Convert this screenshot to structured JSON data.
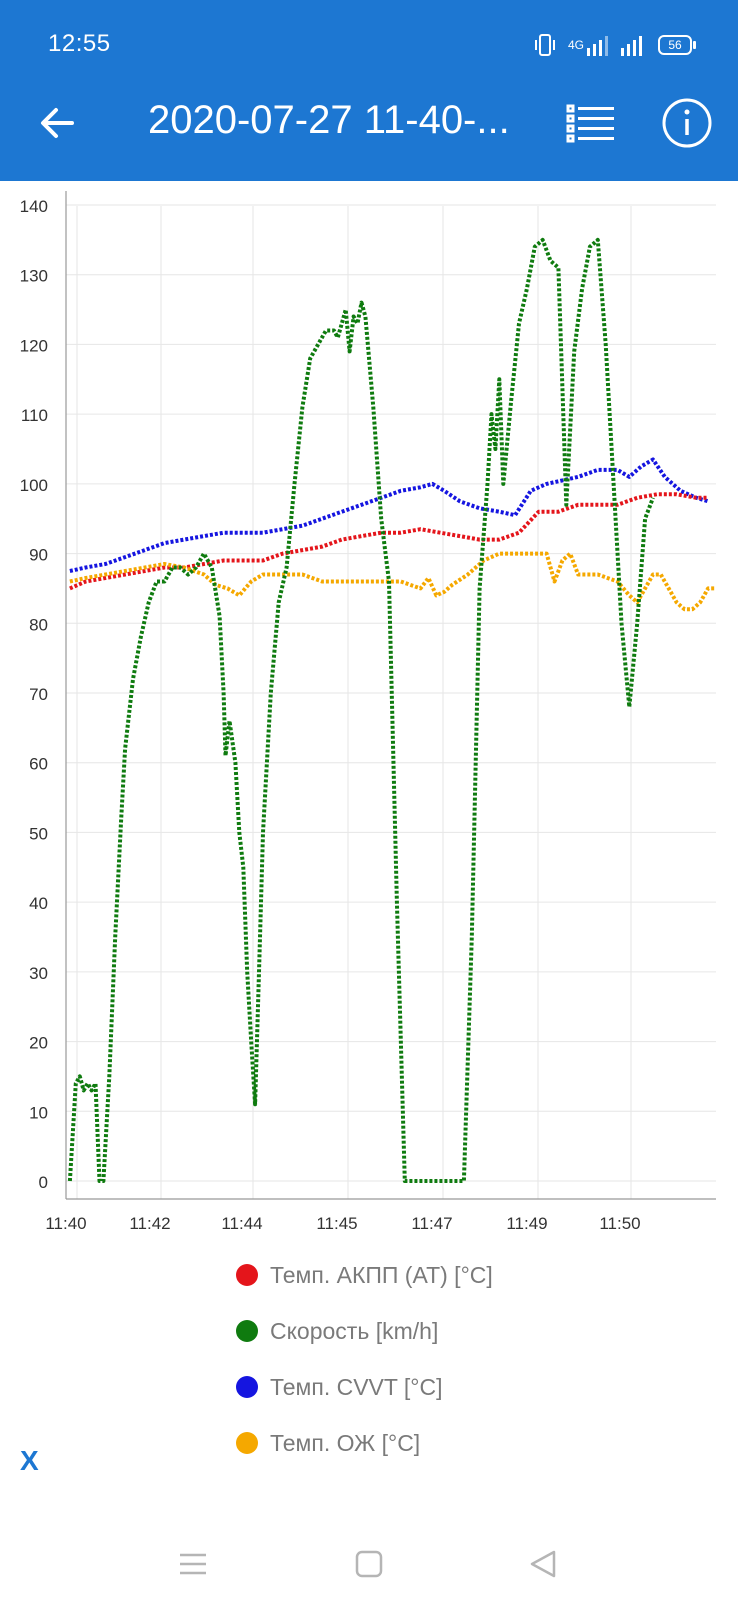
{
  "status_bar": {
    "time": "12:55",
    "network": "4G",
    "battery": "56"
  },
  "app_bar": {
    "title": "2020-07-27 11-40-...",
    "back_icon": "arrow-left-icon",
    "list_icon": "list-icon",
    "info_icon": "info-icon"
  },
  "colors": {
    "app_bar": "#1d77d2",
    "speed": "#0f7b0f",
    "at_temp": "#e4151b",
    "cvvt_temp": "#1515e0",
    "coolant_temp": "#f5a800"
  },
  "chart_data": {
    "type": "line",
    "ylim": [
      0,
      140
    ],
    "y_ticks": [
      0,
      10,
      20,
      30,
      40,
      50,
      60,
      70,
      80,
      90,
      100,
      110,
      120,
      130,
      140
    ],
    "x_ticks": [
      "11:40",
      "11:42",
      "11:44",
      "11:45",
      "11:47",
      "11:49",
      "11:50"
    ],
    "grid": true,
    "legend": "bottom",
    "series": [
      {
        "name": "Темп. АКПП (AT) [°C]",
        "color": "#e4151b",
        "points": [
          [
            0.1,
            85
          ],
          [
            0.5,
            86
          ],
          [
            1.0,
            86.5
          ],
          [
            1.5,
            87
          ],
          [
            2.0,
            87.5
          ],
          [
            2.5,
            88
          ],
          [
            3.0,
            88
          ],
          [
            3.5,
            88.5
          ],
          [
            4.0,
            89
          ],
          [
            4.5,
            89
          ],
          [
            5.0,
            89
          ],
          [
            5.5,
            90
          ],
          [
            6.0,
            90.5
          ],
          [
            6.5,
            91
          ],
          [
            7.0,
            92
          ],
          [
            7.5,
            92.5
          ],
          [
            8.0,
            93
          ],
          [
            8.5,
            93
          ],
          [
            9.0,
            93.5
          ],
          [
            9.5,
            93
          ],
          [
            10.0,
            92.5
          ],
          [
            10.5,
            92
          ],
          [
            11.0,
            92
          ],
          [
            11.5,
            93
          ],
          [
            12.0,
            96
          ],
          [
            12.5,
            96
          ],
          [
            13.0,
            97
          ],
          [
            13.5,
            97
          ],
          [
            14.0,
            97
          ],
          [
            14.5,
            98
          ],
          [
            15.0,
            98.5
          ],
          [
            15.5,
            98.5
          ],
          [
            16.0,
            98
          ],
          [
            16.3,
            98
          ]
        ]
      },
      {
        "name": "Скорость [km/h]",
        "color": "#0f7b0f",
        "points": [
          [
            0.1,
            0
          ],
          [
            0.25,
            14
          ],
          [
            0.35,
            15
          ],
          [
            0.45,
            13
          ],
          [
            0.55,
            14
          ],
          [
            0.65,
            13
          ],
          [
            0.75,
            14
          ],
          [
            0.85,
            0
          ],
          [
            0.95,
            0
          ],
          [
            1.1,
            15
          ],
          [
            1.25,
            35
          ],
          [
            1.4,
            52
          ],
          [
            1.5,
            62
          ],
          [
            1.7,
            72
          ],
          [
            1.9,
            78
          ],
          [
            2.1,
            83
          ],
          [
            2.3,
            86
          ],
          [
            2.5,
            86
          ],
          [
            2.7,
            88
          ],
          [
            2.9,
            88
          ],
          [
            3.1,
            87
          ],
          [
            3.3,
            88
          ],
          [
            3.5,
            90
          ],
          [
            3.7,
            88
          ],
          [
            3.9,
            81
          ],
          [
            4.0,
            70
          ],
          [
            4.05,
            61
          ],
          [
            4.15,
            66
          ],
          [
            4.3,
            60
          ],
          [
            4.4,
            50
          ],
          [
            4.5,
            45
          ],
          [
            4.6,
            30
          ],
          [
            4.7,
            20
          ],
          [
            4.8,
            11
          ],
          [
            4.9,
            30
          ],
          [
            5.0,
            50
          ],
          [
            5.2,
            70
          ],
          [
            5.4,
            83
          ],
          [
            5.6,
            88
          ],
          [
            5.8,
            100
          ],
          [
            6.0,
            111
          ],
          [
            6.2,
            118
          ],
          [
            6.4,
            120
          ],
          [
            6.6,
            122
          ],
          [
            6.8,
            122
          ],
          [
            6.9,
            121
          ],
          [
            7.0,
            123
          ],
          [
            7.1,
            125
          ],
          [
            7.2,
            119
          ],
          [
            7.3,
            124
          ],
          [
            7.4,
            123
          ],
          [
            7.5,
            126
          ],
          [
            7.6,
            124
          ],
          [
            7.8,
            111
          ],
          [
            8.0,
            95
          ],
          [
            8.2,
            86
          ],
          [
            8.4,
            40
          ],
          [
            8.6,
            0
          ],
          [
            9.0,
            0
          ],
          [
            9.4,
            0
          ],
          [
            9.8,
            0
          ],
          [
            10.1,
            0
          ],
          [
            10.3,
            35
          ],
          [
            10.5,
            85
          ],
          [
            10.7,
            100
          ],
          [
            10.8,
            110
          ],
          [
            10.9,
            105
          ],
          [
            11.0,
            115
          ],
          [
            11.1,
            100
          ],
          [
            11.3,
            112
          ],
          [
            11.5,
            123
          ],
          [
            11.7,
            128
          ],
          [
            11.9,
            134
          ],
          [
            12.1,
            135
          ],
          [
            12.3,
            132
          ],
          [
            12.5,
            131
          ],
          [
            12.7,
            97
          ],
          [
            12.9,
            119
          ],
          [
            13.1,
            128
          ],
          [
            13.3,
            134
          ],
          [
            13.5,
            135
          ],
          [
            13.7,
            120
          ],
          [
            13.9,
            100
          ],
          [
            14.1,
            80
          ],
          [
            14.3,
            68
          ],
          [
            14.5,
            80
          ],
          [
            14.7,
            95
          ],
          [
            14.9,
            98
          ]
        ]
      },
      {
        "name": "Темп. CVVT [°C]",
        "color": "#1515e0",
        "points": [
          [
            0.1,
            87.5
          ],
          [
            0.5,
            88
          ],
          [
            1.0,
            88.5
          ],
          [
            1.5,
            89.5
          ],
          [
            2.0,
            90.5
          ],
          [
            2.5,
            91.5
          ],
          [
            3.0,
            92
          ],
          [
            3.5,
            92.5
          ],
          [
            4.0,
            93
          ],
          [
            4.5,
            93
          ],
          [
            5.0,
            93
          ],
          [
            5.5,
            93.5
          ],
          [
            6.0,
            94
          ],
          [
            6.5,
            95
          ],
          [
            7.0,
            96
          ],
          [
            7.5,
            97
          ],
          [
            8.0,
            98
          ],
          [
            8.5,
            99
          ],
          [
            9.0,
            99.5
          ],
          [
            9.3,
            100
          ],
          [
            9.6,
            99
          ],
          [
            10.0,
            97.5
          ],
          [
            10.5,
            96.5
          ],
          [
            11.0,
            96
          ],
          [
            11.4,
            95.5
          ],
          [
            11.8,
            99
          ],
          [
            12.2,
            100
          ],
          [
            12.6,
            100.5
          ],
          [
            13.0,
            101
          ],
          [
            13.5,
            102
          ],
          [
            14.0,
            102
          ],
          [
            14.3,
            101
          ],
          [
            14.6,
            102.5
          ],
          [
            14.9,
            103.5
          ],
          [
            15.2,
            101
          ],
          [
            15.6,
            99
          ],
          [
            16.0,
            98
          ],
          [
            16.3,
            97.5
          ]
        ]
      },
      {
        "name": "Темп. ОЖ [°C]",
        "color": "#f5a800",
        "points": [
          [
            0.1,
            86
          ],
          [
            0.5,
            86.5
          ],
          [
            1.0,
            87
          ],
          [
            1.5,
            87.5
          ],
          [
            2.0,
            88
          ],
          [
            2.5,
            88.5
          ],
          [
            3.0,
            88
          ],
          [
            3.5,
            87
          ],
          [
            3.8,
            85.5
          ],
          [
            4.1,
            85
          ],
          [
            4.4,
            84
          ],
          [
            4.7,
            86
          ],
          [
            5.0,
            87
          ],
          [
            5.5,
            87
          ],
          [
            6.0,
            87
          ],
          [
            6.5,
            86
          ],
          [
            7.0,
            86
          ],
          [
            7.5,
            86
          ],
          [
            8.0,
            86
          ],
          [
            8.5,
            86
          ],
          [
            9.0,
            85
          ],
          [
            9.2,
            86.5
          ],
          [
            9.4,
            84
          ],
          [
            9.6,
            84.5
          ],
          [
            9.8,
            85.5
          ],
          [
            10.2,
            87
          ],
          [
            10.6,
            89
          ],
          [
            11.0,
            90
          ],
          [
            11.4,
            90
          ],
          [
            11.8,
            90
          ],
          [
            12.2,
            90
          ],
          [
            12.4,
            86
          ],
          [
            12.6,
            89
          ],
          [
            12.8,
            90
          ],
          [
            13.0,
            87
          ],
          [
            13.5,
            87
          ],
          [
            14.0,
            86
          ],
          [
            14.3,
            84
          ],
          [
            14.5,
            83
          ],
          [
            14.7,
            85
          ],
          [
            14.9,
            87
          ],
          [
            15.1,
            87
          ],
          [
            15.3,
            85
          ],
          [
            15.5,
            83
          ],
          [
            15.7,
            82
          ],
          [
            15.9,
            82
          ],
          [
            16.1,
            83
          ],
          [
            16.3,
            85
          ],
          [
            16.5,
            85
          ]
        ]
      }
    ]
  },
  "bottom": {
    "x_label": "X"
  },
  "navbar": {
    "menu_icon": "menu-icon",
    "home_icon": "home-square-icon",
    "back_icon": "back-triangle-icon"
  }
}
